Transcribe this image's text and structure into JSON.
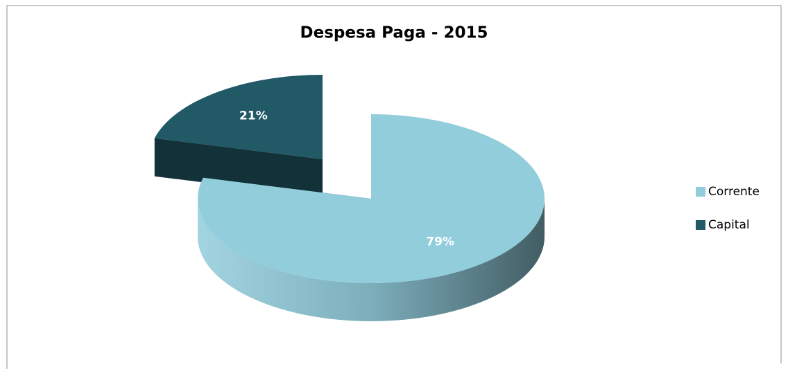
{
  "chart_data": {
    "type": "pie",
    "title": "Despesa Paga - 2015",
    "categories": [
      "Corrente",
      "Capital"
    ],
    "values": [
      79,
      21
    ],
    "value_labels": [
      "79%",
      "21%"
    ],
    "colors": [
      "#92cddc",
      "#215967"
    ],
    "legend": "right"
  }
}
